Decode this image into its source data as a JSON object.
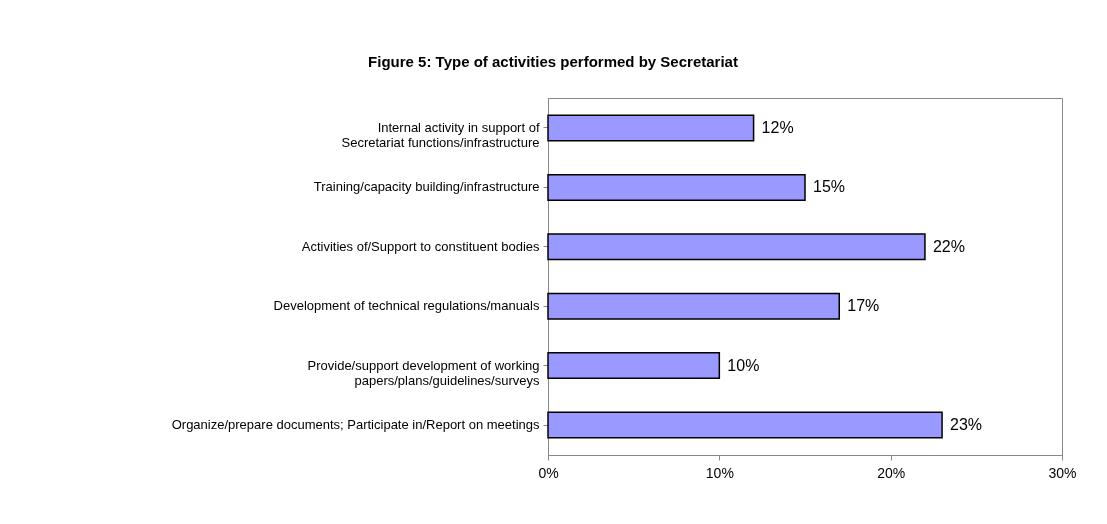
{
  "chart_data": {
    "type": "bar",
    "orientation": "horizontal",
    "title": "Figure 5: Type of activities performed by Secretariat",
    "categories": [
      "Internal activity in support of Secretariat functions/infrastructure",
      "Training/capacity building/infrastructure",
      "Activities of/Support to constituent bodies",
      "Development of technical regulations/manuals",
      "Provide/support development of working papers/plans/guidelines/surveys",
      "Organize/prepare documents; Participate in/Report on meetings"
    ],
    "values": [
      12,
      15,
      22,
      17,
      10,
      23
    ],
    "value_labels": [
      "12%",
      "15%",
      "22%",
      "17%",
      "10%",
      "23%"
    ],
    "color": "#9999ff",
    "xlim": [
      0,
      30
    ],
    "xticks": [
      {
        "value": 0,
        "label": "0%"
      },
      {
        "value": 10,
        "label": "10%"
      },
      {
        "value": 20,
        "label": "20%"
      },
      {
        "value": 30,
        "label": "30%"
      }
    ],
    "grid": false
  }
}
